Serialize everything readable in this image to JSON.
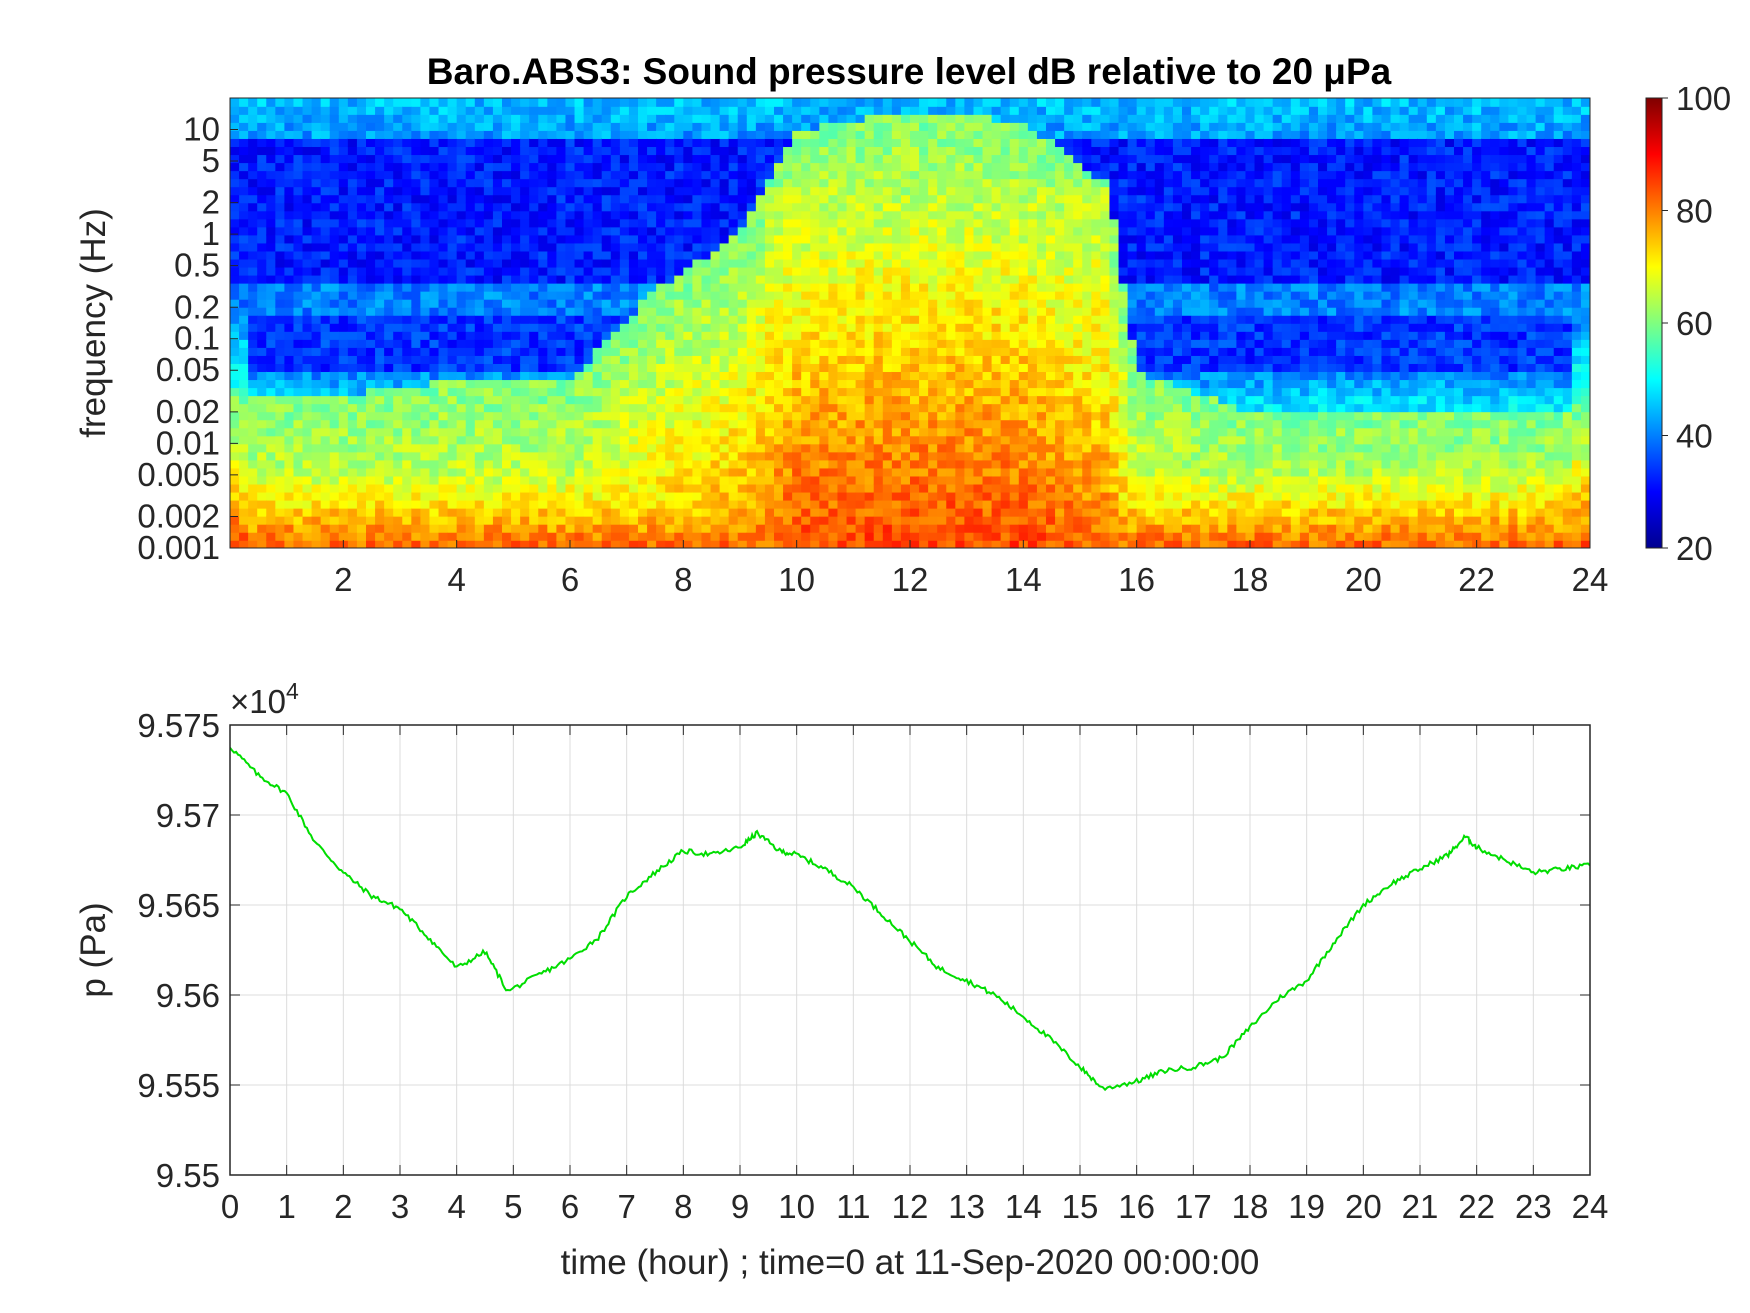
{
  "chart_data": [
    {
      "type": "heatmap",
      "title": "Baro.ABS3: Sound pressure level dB relative to 20 μPa",
      "ylabel": "frequency (Hz)",
      "xlabel": "",
      "x_ticks": [
        "2",
        "4",
        "6",
        "8",
        "10",
        "12",
        "14",
        "16",
        "18",
        "20",
        "22",
        "24"
      ],
      "y_ticks": [
        "10",
        "5",
        "2",
        "1",
        "0.5",
        "0.2",
        "0.1",
        "0.05",
        "0.02",
        "0.01",
        "0.005",
        "0.002",
        "0.001"
      ],
      "xlim": [
        0,
        24
      ],
      "ylim": [
        0.001,
        20
      ],
      "y_scale": "log",
      "colorbar": {
        "ticks": [
          "100",
          "80",
          "60",
          "40",
          "20"
        ],
        "range": [
          20,
          100
        ],
        "colormap": "jet"
      },
      "activity_envelope": [
        {
          "x": 0,
          "y": 0.03
        },
        {
          "x": 2,
          "y": 0.03
        },
        {
          "x": 4,
          "y": 0.04
        },
        {
          "x": 6,
          "y": 0.04
        },
        {
          "x": 7.5,
          "y": 0.3
        },
        {
          "x": 9,
          "y": 1
        },
        {
          "x": 10,
          "y": 10
        },
        {
          "x": 12,
          "y": 15
        },
        {
          "x": 14,
          "y": 12
        },
        {
          "x": 15.5,
          "y": 3
        },
        {
          "x": 16,
          "y": 0.05
        },
        {
          "x": 18,
          "y": 0.02
        },
        {
          "x": 20,
          "y": 0.02
        },
        {
          "x": 22,
          "y": 0.02
        },
        {
          "x": 24,
          "y": 0.02
        }
      ]
    },
    {
      "type": "line",
      "title": "",
      "ylabel": "p (Pa)",
      "xlabel": "time (hour) ; time=0 at 11-Sep-2020 00:00:00",
      "y_multiplier": "×10",
      "y_multiplier_exp": "4",
      "x_ticks": [
        "0",
        "1",
        "2",
        "3",
        "4",
        "5",
        "6",
        "7",
        "8",
        "9",
        "10",
        "11",
        "12",
        "13",
        "14",
        "15",
        "16",
        "17",
        "18",
        "19",
        "20",
        "21",
        "22",
        "23",
        "24"
      ],
      "y_ticks": [
        "9.575",
        "9.57",
        "9.565",
        "9.56",
        "9.555",
        "9.55"
      ],
      "xlim": [
        0,
        24
      ],
      "ylim": [
        9.55,
        9.575
      ],
      "grid": true,
      "series_color": "#00dd00",
      "series": [
        {
          "name": "",
          "points": [
            [
              0,
              9.5738
            ],
            [
              0.5,
              9.5722
            ],
            [
              1,
              9.5712
            ],
            [
              1.5,
              9.5685
            ],
            [
              2,
              9.5668
            ],
            [
              2.5,
              9.5655
            ],
            [
              3,
              9.5648
            ],
            [
              3.5,
              9.5632
            ],
            [
              4,
              9.5615
            ],
            [
              4.5,
              9.5624
            ],
            [
              4.9,
              9.5602
            ],
            [
              5.5,
              9.5612
            ],
            [
              6,
              9.562
            ],
            [
              6.5,
              9.5632
            ],
            [
              7,
              9.5655
            ],
            [
              7.5,
              9.5668
            ],
            [
              8,
              9.568
            ],
            [
              8.5,
              9.5678
            ],
            [
              9,
              9.5682
            ],
            [
              9.3,
              9.569
            ],
            [
              9.7,
              9.568
            ],
            [
              10,
              9.5678
            ],
            [
              10.5,
              9.567
            ],
            [
              11,
              9.566
            ],
            [
              11.5,
              9.5645
            ],
            [
              12,
              9.563
            ],
            [
              12.5,
              9.5615
            ],
            [
              13,
              9.5608
            ],
            [
              13.5,
              9.56
            ],
            [
              14,
              9.5588
            ],
            [
              14.5,
              9.5575
            ],
            [
              15,
              9.556
            ],
            [
              15.4,
              9.5548
            ],
            [
              16,
              9.5552
            ],
            [
              16.5,
              9.5558
            ],
            [
              17,
              9.556
            ],
            [
              17.5,
              9.5565
            ],
            [
              18,
              9.5582
            ],
            [
              18.5,
              9.5598
            ],
            [
              19,
              9.5608
            ],
            [
              19.5,
              9.563
            ],
            [
              20,
              9.565
            ],
            [
              20.5,
              9.5662
            ],
            [
              21,
              9.567
            ],
            [
              21.5,
              9.5678
            ],
            [
              21.8,
              9.5688
            ],
            [
              22,
              9.5682
            ],
            [
              22.5,
              9.5675
            ],
            [
              23,
              9.5668
            ],
            [
              23.5,
              9.567
            ],
            [
              24,
              9.5672
            ]
          ]
        }
      ]
    }
  ]
}
